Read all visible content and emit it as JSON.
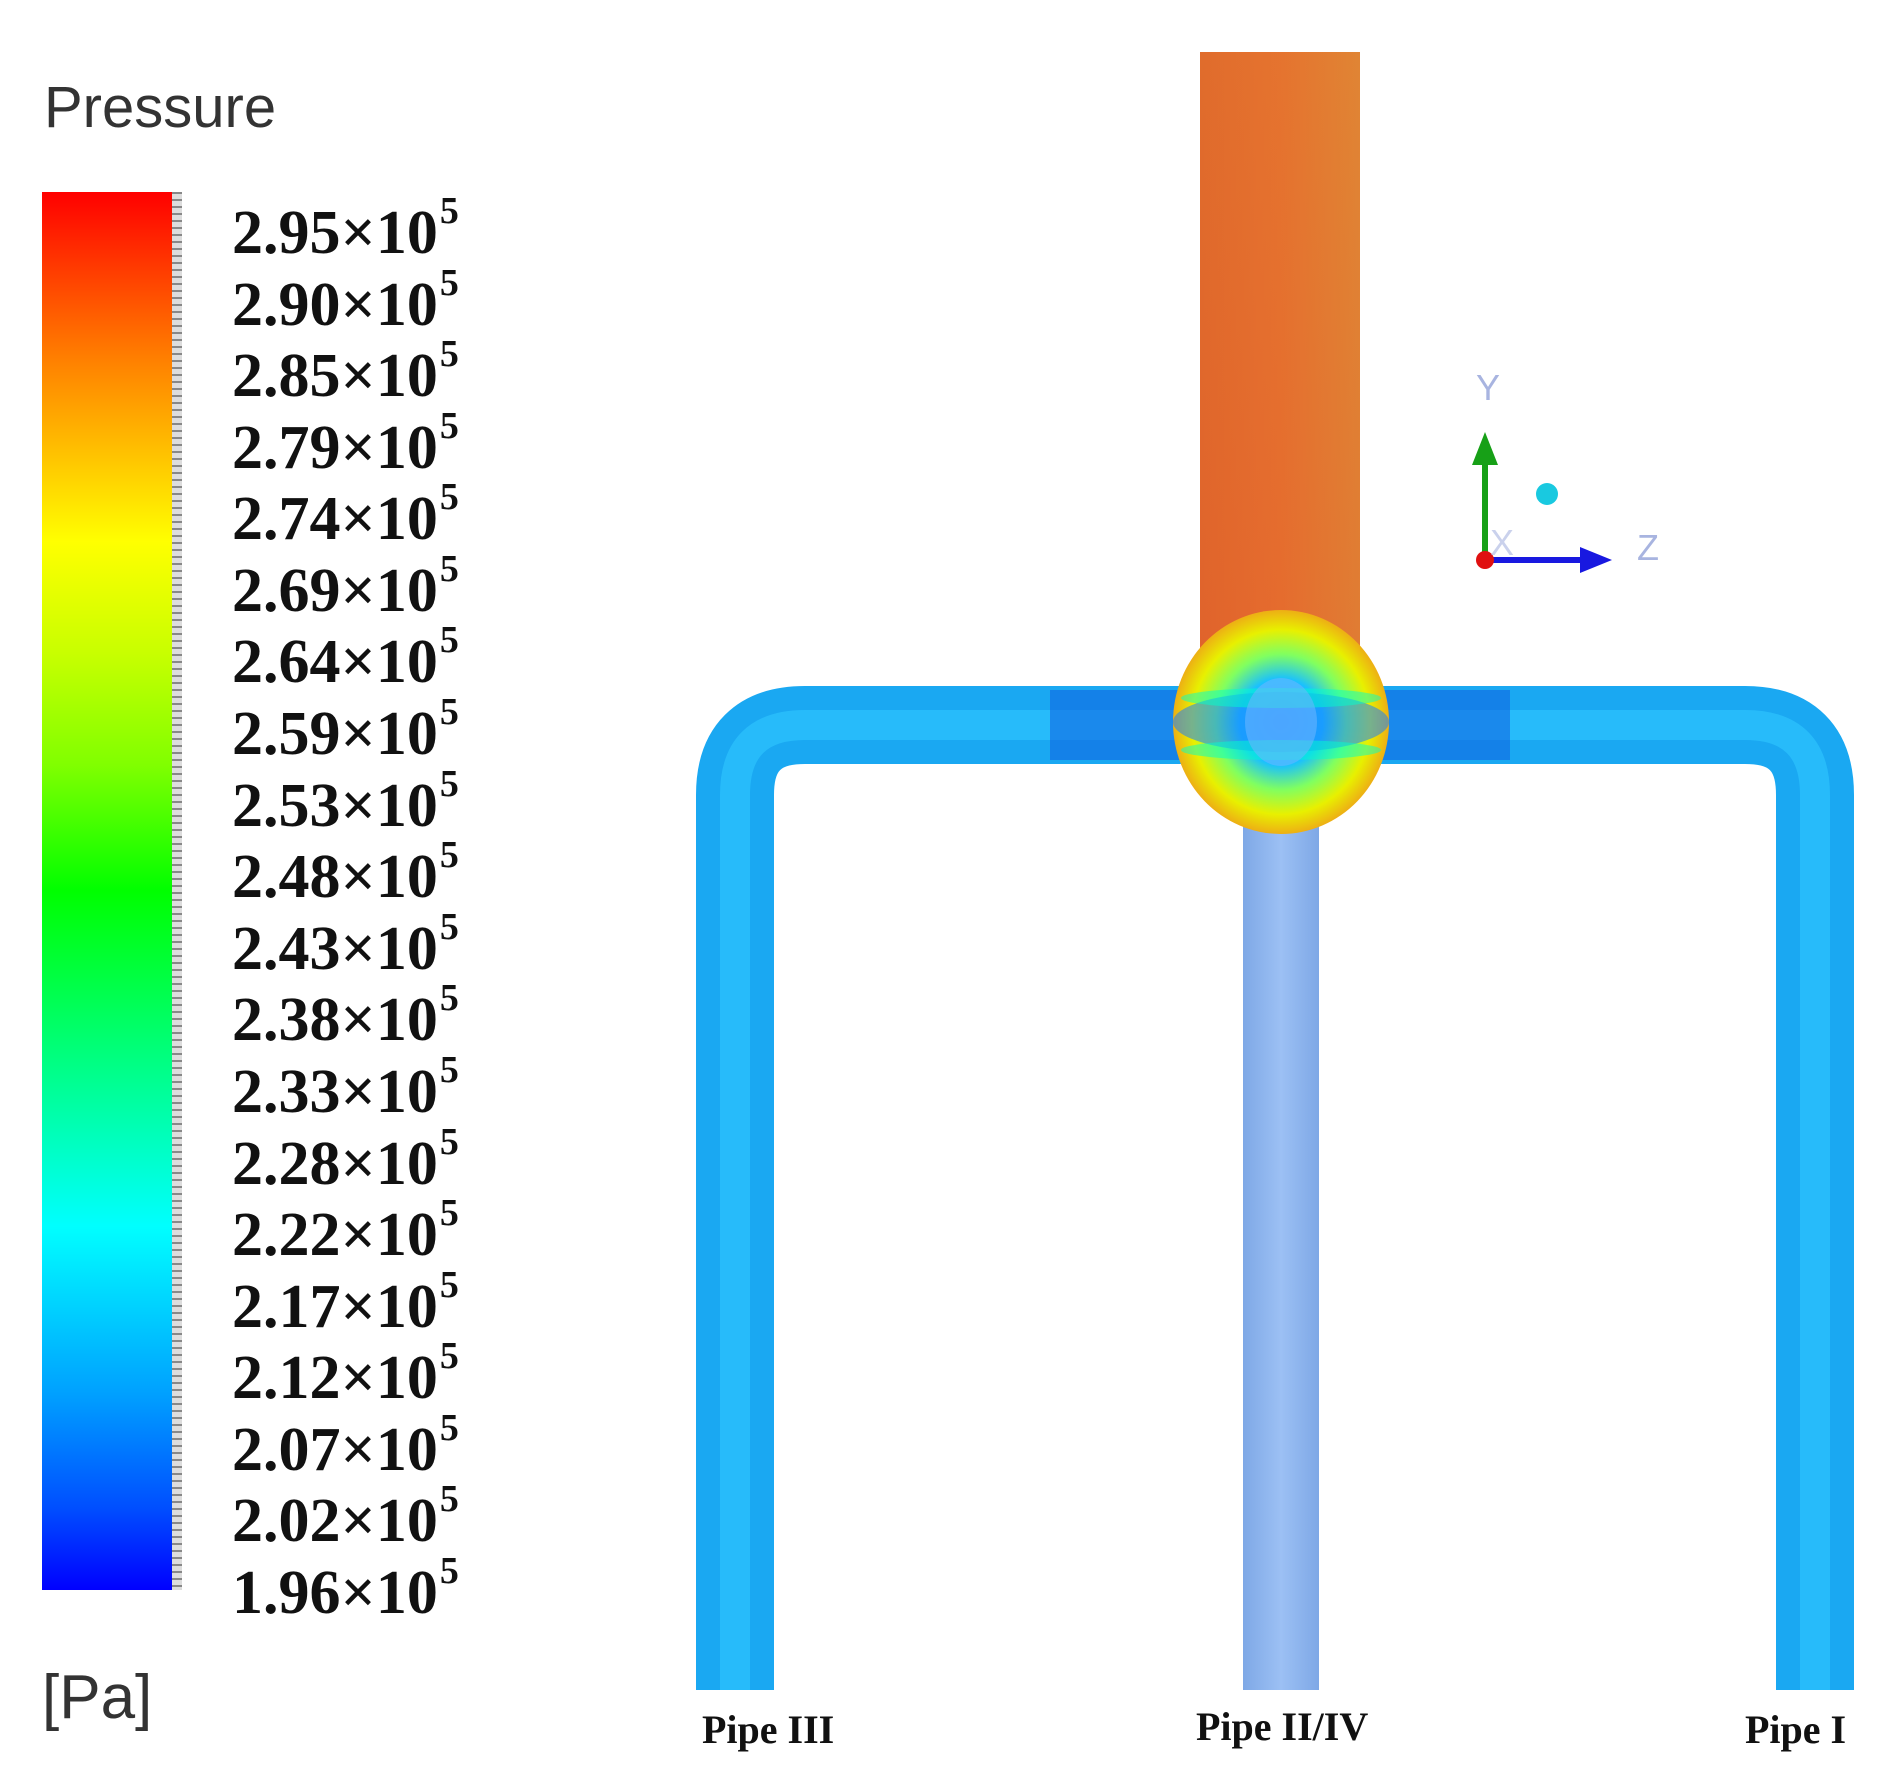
{
  "legend": {
    "title": "Pressure",
    "unit": "[Pa]",
    "ticks": [
      {
        "mantissa": "2.95×10",
        "exp": "5"
      },
      {
        "mantissa": "2.90×10",
        "exp": "5"
      },
      {
        "mantissa": "2.85×10",
        "exp": "5"
      },
      {
        "mantissa": "2.79×10",
        "exp": "5"
      },
      {
        "mantissa": "2.74×10",
        "exp": "5"
      },
      {
        "mantissa": "2.69×10",
        "exp": "5"
      },
      {
        "mantissa": "2.64×10",
        "exp": "5"
      },
      {
        "mantissa": "2.59×10",
        "exp": "5"
      },
      {
        "mantissa": "2.53×10",
        "exp": "5"
      },
      {
        "mantissa": "2.48×10",
        "exp": "5"
      },
      {
        "mantissa": "2.43×10",
        "exp": "5"
      },
      {
        "mantissa": "2.38×10",
        "exp": "5"
      },
      {
        "mantissa": "2.33×10",
        "exp": "5"
      },
      {
        "mantissa": "2.28×10",
        "exp": "5"
      },
      {
        "mantissa": "2.22×10",
        "exp": "5"
      },
      {
        "mantissa": "2.17×10",
        "exp": "5"
      },
      {
        "mantissa": "2.12×10",
        "exp": "5"
      },
      {
        "mantissa": "2.07×10",
        "exp": "5"
      },
      {
        "mantissa": "2.02×10",
        "exp": "5"
      },
      {
        "mantissa": "1.96×10",
        "exp": "5"
      }
    ],
    "colors": [
      "#ff0000",
      "#ff8000",
      "#ffff00",
      "#00ff00",
      "#00ffff",
      "#0000ff"
    ]
  },
  "pipes": {
    "left": "Pipe III",
    "middle": "Pipe II/IV",
    "right": "Pipe I"
  },
  "axes": {
    "y": "Y",
    "z": "Z",
    "x": "X"
  }
}
